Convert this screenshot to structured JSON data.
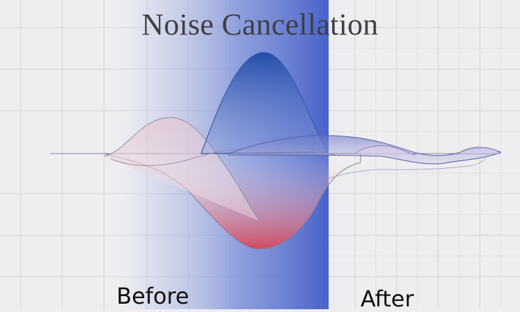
{
  "title": "Noise Cancellation",
  "labels": {
    "before": "Before",
    "after": "After"
  },
  "colors": {
    "background": "#eeeef0",
    "grid": "#d6d6dc",
    "panel_blue": "#3f5cc8",
    "wave_blue": "#2f56b0",
    "wave_red": "#d24a5c",
    "wave_outline": "#7c7c90"
  },
  "icons": []
}
